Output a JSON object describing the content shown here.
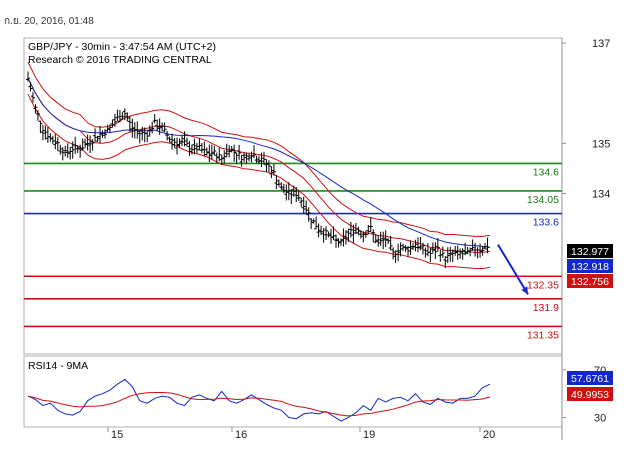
{
  "timestamp": "ก.ย. 20, 2016, 01:48",
  "chart_data": {
    "type": "candlestick",
    "header_line1": "GBP/JPY - 30min - 3:47:54 AM (UTC+2)",
    "header_line2": "Research © 2016 TRADING CENTRAL",
    "y_range": [
      130.8,
      137.1
    ],
    "price_ticks": [
      "137",
      "135",
      "134"
    ],
    "x_ticks": [
      "15",
      "16",
      "19",
      "20"
    ],
    "price_tags": [
      {
        "label": "132.977",
        "value": 132.977,
        "color": "#000000"
      },
      {
        "label": "132.918",
        "value": 132.918,
        "color": "#1428c8"
      },
      {
        "label": "132.756",
        "value": 132.756,
        "color": "#d01010"
      }
    ],
    "levels": [
      {
        "label": "134.6",
        "value": 134.6,
        "color": "#1a8a1a",
        "text_color": "#1a7a1a"
      },
      {
        "label": "134.05",
        "value": 134.05,
        "color": "#1a8a1a",
        "text_color": "#1a7a1a"
      },
      {
        "label": "133.6",
        "value": 133.6,
        "color": "#1428c8",
        "text_color": "#1428c8"
      },
      {
        "label": "132.35",
        "value": 132.35,
        "color": "#d01010",
        "text_color": "#d01010"
      },
      {
        "label": "131.9",
        "value": 131.9,
        "color": "#d01010",
        "text_color": "#d01010"
      },
      {
        "label": "131.35",
        "value": 131.35,
        "color": "#d01010",
        "text_color": "#d01010"
      }
    ],
    "close_series": [
      136.3,
      135.7,
      135.3,
      135.1,
      135.0,
      134.8,
      134.9,
      134.9,
      135.0,
      135.1,
      135.2,
      135.3,
      135.5,
      135.6,
      135.3,
      135.2,
      135.2,
      135.4,
      135.3,
      135.1,
      135.0,
      135.0,
      134.9,
      134.9,
      134.8,
      134.8,
      134.7,
      134.9,
      134.8,
      134.7,
      134.8,
      134.7,
      134.6,
      134.4,
      134.1,
      134.0,
      134.0,
      133.8,
      133.5,
      133.3,
      133.2,
      133.1,
      133.0,
      133.2,
      133.3,
      133.2,
      133.3,
      133.0,
      133.1,
      132.8,
      132.9,
      132.9,
      133.0,
      132.9,
      132.8,
      132.9,
      132.7,
      132.8,
      132.8,
      132.8,
      132.9,
      132.9,
      132.98
    ],
    "series": [
      {
        "name": "price",
        "color": "#000000"
      },
      {
        "name": "bollinger",
        "color": "#d01010"
      },
      {
        "name": "moving-average",
        "color": "#1428c8"
      }
    ],
    "rsi": {
      "label": "RSI14 - 9MA",
      "y_range": [
        22,
        80
      ],
      "ticks": [
        "70",
        "30"
      ],
      "values": [
        48,
        45,
        40,
        42,
        36,
        33,
        32,
        35,
        44,
        48,
        50,
        53,
        58,
        62,
        56,
        44,
        42,
        46,
        48,
        47,
        42,
        40,
        47,
        49,
        46,
        44,
        52,
        44,
        42,
        45,
        49,
        45,
        41,
        38,
        36,
        30,
        29,
        33,
        34,
        33,
        35,
        31,
        27,
        30,
        34,
        40,
        36,
        46,
        43,
        46,
        47,
        44,
        50,
        43,
        41,
        46,
        43,
        42,
        46,
        46,
        48,
        55,
        58
      ],
      "tags": [
        {
          "label": "57.6761",
          "value": 57.6761,
          "color": "#1428c8"
        },
        {
          "label": "49.9953",
          "value": 49.9953,
          "color": "#d01010"
        }
      ]
    },
    "forecast_arrow": {
      "from": 132.98,
      "to": 131.95,
      "color": "#1428c8"
    }
  }
}
